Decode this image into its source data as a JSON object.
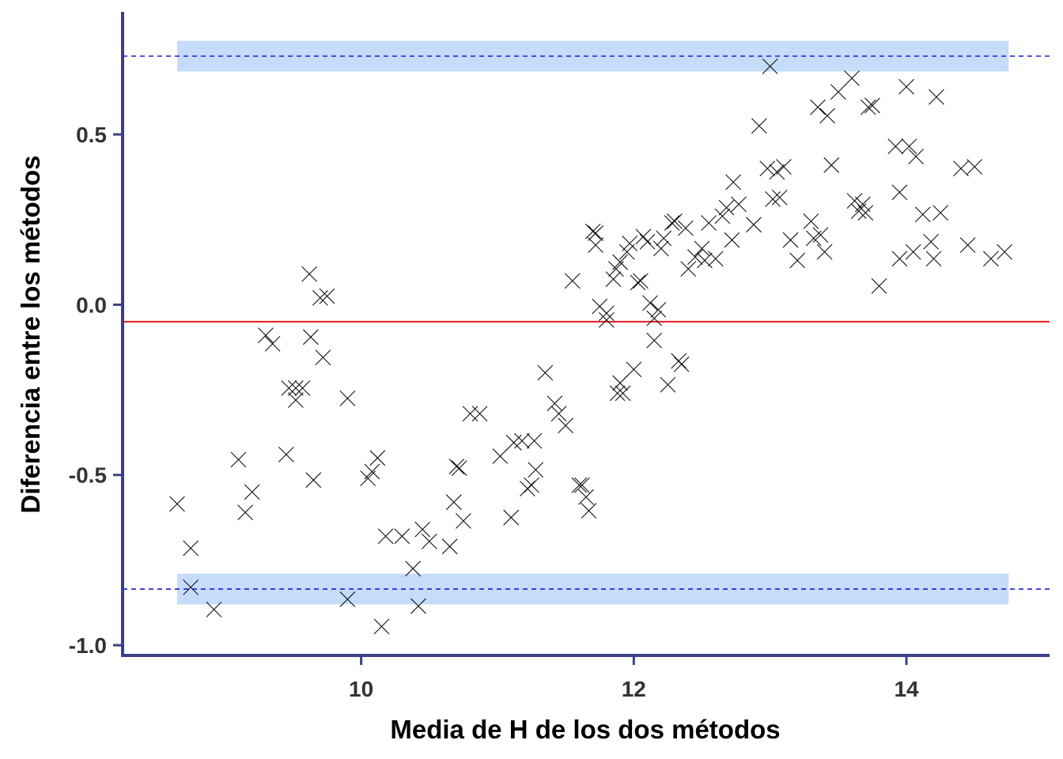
{
  "chart_data": {
    "type": "scatter",
    "xlabel": "Media de H de los dos métodos",
    "ylabel": "Diferencia entre los métodos",
    "xlim": [
      8.25,
      15.05
    ],
    "ylim": [
      -1.03,
      0.86
    ],
    "x_ticks": [
      10,
      12,
      14
    ],
    "x_tick_labels": [
      "10",
      "12",
      "14"
    ],
    "y_ticks": [
      -1.0,
      -0.5,
      0.0,
      0.5
    ],
    "y_tick_labels": [
      "-1.0",
      "-0.5",
      "0.0",
      "0.5"
    ],
    "grid": false,
    "mean_line": {
      "y": -0.05,
      "color": "#e8191b"
    },
    "limits_of_agreement": [
      {
        "y": 0.73,
        "band": [
          0.685,
          0.775
        ],
        "color": "#1a1ad6"
      },
      {
        "y": -0.835,
        "band": [
          -0.88,
          -0.79
        ],
        "color": "#1a1ad6"
      }
    ],
    "band_x_range": [
      8.65,
      14.75
    ],
    "band_color": "#c5dcfa",
    "axis_color": "#3b3f86",
    "marker": "x",
    "points": [
      [
        8.65,
        -0.585
      ],
      [
        8.75,
        -0.715
      ],
      [
        8.75,
        -0.83
      ],
      [
        8.92,
        -0.895
      ],
      [
        9.1,
        -0.455
      ],
      [
        9.15,
        -0.61
      ],
      [
        9.2,
        -0.55
      ],
      [
        9.3,
        -0.09
      ],
      [
        9.35,
        -0.115
      ],
      [
        9.45,
        -0.44
      ],
      [
        9.47,
        -0.245
      ],
      [
        9.52,
        -0.28
      ],
      [
        9.52,
        -0.245
      ],
      [
        9.57,
        -0.245
      ],
      [
        9.62,
        0.09
      ],
      [
        9.63,
        -0.095
      ],
      [
        9.65,
        -0.515
      ],
      [
        9.7,
        0.02
      ],
      [
        9.72,
        -0.155
      ],
      [
        9.75,
        0.025
      ],
      [
        9.9,
        -0.275
      ],
      [
        9.9,
        -0.865
      ],
      [
        10.05,
        -0.51
      ],
      [
        10.08,
        -0.49
      ],
      [
        10.12,
        -0.45
      ],
      [
        10.15,
        -0.945
      ],
      [
        10.18,
        -0.68
      ],
      [
        10.3,
        -0.68
      ],
      [
        10.38,
        -0.775
      ],
      [
        10.42,
        -0.885
      ],
      [
        10.45,
        -0.66
      ],
      [
        10.5,
        -0.695
      ],
      [
        10.65,
        -0.71
      ],
      [
        10.68,
        -0.58
      ],
      [
        10.7,
        -0.475
      ],
      [
        10.72,
        -0.48
      ],
      [
        10.75,
        -0.635
      ],
      [
        10.8,
        -0.32
      ],
      [
        10.87,
        -0.32
      ],
      [
        11.02,
        -0.445
      ],
      [
        11.1,
        -0.625
      ],
      [
        11.12,
        -0.405
      ],
      [
        11.18,
        -0.4
      ],
      [
        11.22,
        -0.54
      ],
      [
        11.25,
        -0.53
      ],
      [
        11.27,
        -0.4
      ],
      [
        11.28,
        -0.485
      ],
      [
        11.35,
        -0.2
      ],
      [
        11.42,
        -0.29
      ],
      [
        11.45,
        -0.32
      ],
      [
        11.5,
        -0.355
      ],
      [
        11.55,
        0.07
      ],
      [
        11.6,
        -0.53
      ],
      [
        11.62,
        -0.53
      ],
      [
        11.65,
        -0.565
      ],
      [
        11.67,
        -0.605
      ],
      [
        11.7,
        0.215
      ],
      [
        11.72,
        0.21
      ],
      [
        11.72,
        0.175
      ],
      [
        11.75,
        -0.005
      ],
      [
        11.8,
        -0.025
      ],
      [
        11.8,
        -0.045
      ],
      [
        11.85,
        0.075
      ],
      [
        11.87,
        0.105
      ],
      [
        11.9,
        0.125
      ],
      [
        11.88,
        -0.26
      ],
      [
        11.9,
        -0.23
      ],
      [
        11.92,
        -0.26
      ],
      [
        11.95,
        0.155
      ],
      [
        11.97,
        0.18
      ],
      [
        12.0,
        -0.19
      ],
      [
        12.03,
        0.065
      ],
      [
        12.05,
        0.07
      ],
      [
        12.07,
        0.2
      ],
      [
        12.1,
        0.185
      ],
      [
        12.12,
        0.005
      ],
      [
        12.15,
        -0.04
      ],
      [
        12.15,
        -0.105
      ],
      [
        12.18,
        -0.015
      ],
      [
        12.2,
        0.165
      ],
      [
        12.22,
        0.195
      ],
      [
        12.25,
        -0.235
      ],
      [
        12.28,
        0.24
      ],
      [
        12.3,
        0.245
      ],
      [
        12.33,
        -0.165
      ],
      [
        12.35,
        -0.175
      ],
      [
        12.38,
        0.225
      ],
      [
        12.4,
        0.105
      ],
      [
        12.45,
        0.14
      ],
      [
        12.5,
        0.165
      ],
      [
        12.52,
        0.13
      ],
      [
        12.55,
        0.24
      ],
      [
        12.6,
        0.135
      ],
      [
        12.65,
        0.26
      ],
      [
        12.68,
        0.285
      ],
      [
        12.72,
        0.19
      ],
      [
        12.73,
        0.36
      ],
      [
        12.77,
        0.295
      ],
      [
        12.88,
        0.235
      ],
      [
        12.92,
        0.525
      ],
      [
        12.98,
        0.4
      ],
      [
        13.0,
        0.7
      ],
      [
        13.02,
        0.31
      ],
      [
        13.05,
        0.39
      ],
      [
        13.07,
        0.315
      ],
      [
        13.1,
        0.405
      ],
      [
        13.15,
        0.19
      ],
      [
        13.2,
        0.13
      ],
      [
        13.3,
        0.245
      ],
      [
        13.32,
        0.195
      ],
      [
        13.35,
        0.58
      ],
      [
        13.37,
        0.205
      ],
      [
        13.4,
        0.155
      ],
      [
        13.42,
        0.555
      ],
      [
        13.45,
        0.41
      ],
      [
        13.5,
        0.625
      ],
      [
        13.6,
        0.665
      ],
      [
        13.62,
        0.305
      ],
      [
        13.65,
        0.275
      ],
      [
        13.68,
        0.295
      ],
      [
        13.7,
        0.27
      ],
      [
        13.72,
        0.58
      ],
      [
        13.75,
        0.585
      ],
      [
        13.8,
        0.055
      ],
      [
        13.92,
        0.465
      ],
      [
        13.95,
        0.135
      ],
      [
        13.95,
        0.33
      ],
      [
        14.0,
        0.64
      ],
      [
        14.02,
        0.465
      ],
      [
        14.05,
        0.155
      ],
      [
        14.07,
        0.435
      ],
      [
        14.12,
        0.265
      ],
      [
        14.18,
        0.185
      ],
      [
        14.2,
        0.135
      ],
      [
        14.22,
        0.61
      ],
      [
        14.25,
        0.27
      ],
      [
        14.4,
        0.4
      ],
      [
        14.45,
        0.175
      ],
      [
        14.5,
        0.405
      ],
      [
        14.62,
        0.135
      ],
      [
        14.72,
        0.155
      ]
    ]
  }
}
